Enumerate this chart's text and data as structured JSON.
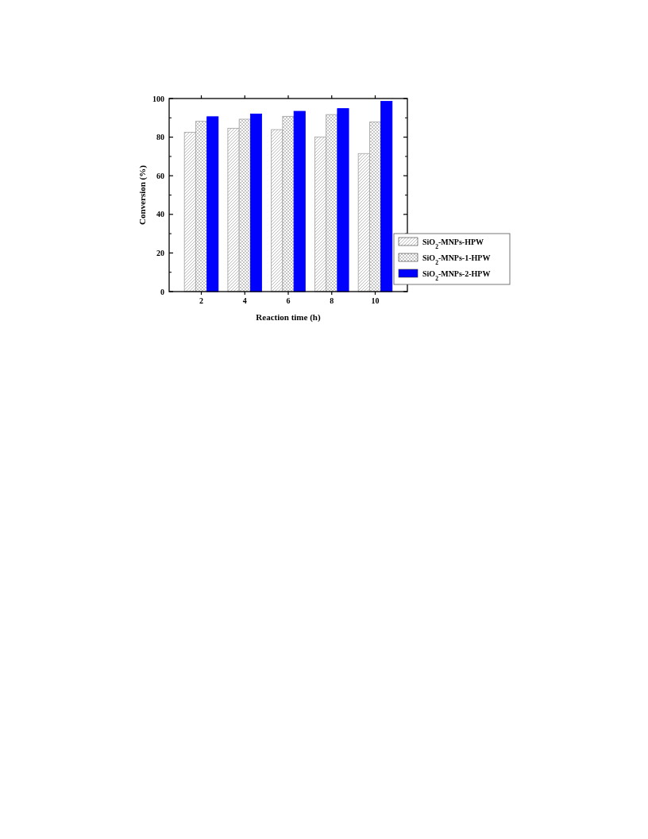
{
  "chart_data": {
    "type": "bar",
    "xlabel": "Reaction time (h)",
    "ylabel": "Conversion (%)",
    "categories": [
      "2",
      "4",
      "6",
      "8",
      "10"
    ],
    "series": [
      {
        "name": "SiO$_{2}$-MNPs-HPW",
        "color": "#a0a0a0",
        "values": [
          82.5,
          84.6,
          83.9,
          80.1,
          71.5
        ]
      },
      {
        "name": "SiO$_{2}$-MNPs-1-HPW",
        "color": "#a0a0a0",
        "values": [
          88.2,
          89.3,
          90.8,
          91.7,
          87.8
        ]
      },
      {
        "name": "SiO$_{2}$-MNPs-2-HPW",
        "color": "#0000ff",
        "values": [
          90.6,
          92.0,
          93.4,
          94.8,
          98.6
        ]
      }
    ],
    "ylim": [
      0,
      100
    ],
    "yticks": [
      0,
      20,
      40,
      60,
      80,
      100
    ],
    "legend": "bottom right"
  }
}
